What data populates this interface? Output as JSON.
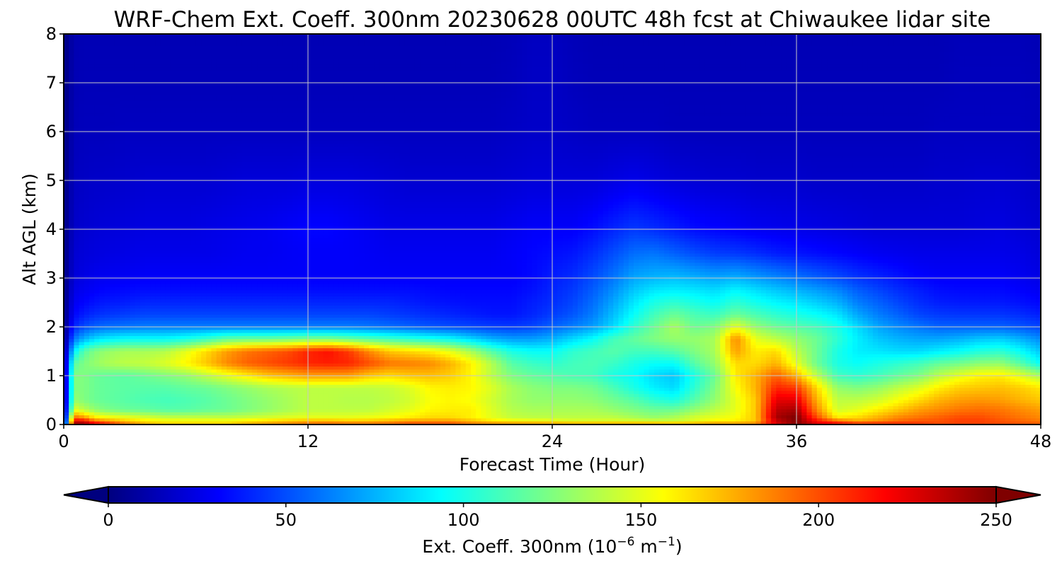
{
  "chart_data": {
    "type": "heatmap",
    "title": "WRF-Chem Ext. Coeff. 300nm  20230628 00UTC 48h fcst at Chiwaukee lidar site",
    "xlabel": "Forecast Time (Hour)",
    "ylabel": "Alt AGL (km)",
    "xlim": [
      0,
      48
    ],
    "ylim": [
      0,
      8
    ],
    "x_ticks": [
      "0",
      "12",
      "24",
      "36",
      "48"
    ],
    "y_ticks": [
      "0",
      "1",
      "2",
      "3",
      "4",
      "5",
      "6",
      "7",
      "8"
    ],
    "grid": true,
    "colormap": "jet",
    "colorbar": {
      "orientation": "horizontal",
      "placement": "bottom",
      "range": [
        0,
        250
      ],
      "extend": "both",
      "ticks": [
        "0",
        "50",
        "100",
        "150",
        "200",
        "250"
      ],
      "label_main": "Ext. Coeff. 300nm  (10",
      "label_exp1": "−6",
      "label_mid": " m",
      "label_exp2": "−1",
      "label_end": ")"
    },
    "x": [
      0,
      0.5,
      1,
      1.5,
      2,
      3,
      4,
      5,
      6,
      7,
      8,
      9,
      10,
      11,
      12,
      13,
      14,
      15,
      16,
      17,
      18,
      19,
      20,
      21,
      22,
      23,
      24,
      25,
      26,
      27,
      28,
      29,
      30,
      31,
      32,
      33,
      34,
      35,
      36,
      37,
      38,
      39,
      40,
      41,
      42,
      43,
      44,
      45,
      46,
      47,
      48
    ],
    "y": [
      0,
      0.05,
      0.15,
      0.3,
      0.5,
      0.75,
      1.0,
      1.25,
      1.5,
      1.75,
      2.0,
      2.25,
      2.5,
      2.75,
      3.0,
      3.5,
      4.0,
      5.0,
      6.0,
      7.0,
      8.0
    ],
    "z": [
      [
        0,
        250,
        250,
        240,
        230,
        200,
        180,
        170,
        170,
        170,
        170,
        180,
        185,
        190,
        195,
        200,
        200,
        200,
        200,
        210,
        210,
        210,
        200,
        200,
        200,
        200,
        200,
        200,
        200,
        200,
        200,
        200,
        200,
        200,
        200,
        200,
        200,
        230,
        250,
        230,
        230,
        230,
        230,
        220,
        210,
        200,
        200,
        200,
        200,
        200,
        200
      ],
      [
        0,
        230,
        230,
        200,
        190,
        175,
        165,
        160,
        160,
        160,
        160,
        165,
        170,
        175,
        180,
        180,
        175,
        175,
        180,
        185,
        185,
        185,
        175,
        165,
        160,
        158,
        155,
        150,
        150,
        150,
        150,
        148,
        145,
        150,
        160,
        160,
        170,
        230,
        250,
        220,
        200,
        180,
        185,
        195,
        200,
        200,
        205,
        205,
        200,
        195,
        190
      ],
      [
        0,
        190,
        180,
        160,
        155,
        150,
        145,
        140,
        140,
        140,
        140,
        142,
        145,
        148,
        150,
        150,
        150,
        152,
        155,
        160,
        165,
        165,
        160,
        150,
        142,
        140,
        140,
        140,
        140,
        140,
        135,
        130,
        135,
        145,
        150,
        155,
        170,
        240,
        250,
        200,
        160,
        165,
        175,
        185,
        190,
        195,
        200,
        200,
        195,
        190,
        185
      ],
      [
        0,
        150,
        140,
        130,
        125,
        120,
        118,
        115,
        115,
        118,
        120,
        125,
        130,
        135,
        140,
        140,
        140,
        140,
        145,
        150,
        158,
        160,
        160,
        148,
        138,
        135,
        135,
        135,
        135,
        130,
        125,
        120,
        120,
        130,
        140,
        150,
        170,
        235,
        240,
        185,
        145,
        150,
        160,
        170,
        180,
        185,
        190,
        192,
        190,
        185,
        180
      ],
      [
        0,
        130,
        125,
        120,
        118,
        115,
        112,
        110,
        112,
        115,
        120,
        125,
        130,
        135,
        140,
        140,
        138,
        138,
        140,
        145,
        155,
        158,
        155,
        145,
        135,
        130,
        130,
        130,
        128,
        122,
        115,
        105,
        100,
        115,
        130,
        150,
        170,
        225,
        225,
        175,
        140,
        140,
        145,
        155,
        165,
        175,
        180,
        182,
        180,
        175,
        170
      ],
      [
        0,
        125,
        125,
        120,
        118,
        116,
        115,
        115,
        118,
        120,
        125,
        130,
        135,
        138,
        140,
        140,
        140,
        140,
        142,
        148,
        158,
        160,
        158,
        148,
        135,
        128,
        125,
        125,
        122,
        112,
        100,
        90,
        85,
        105,
        125,
        155,
        175,
        210,
        205,
        165,
        130,
        125,
        130,
        140,
        148,
        160,
        168,
        170,
        172,
        168,
        162
      ],
      [
        0,
        125,
        125,
        120,
        118,
        116,
        120,
        125,
        130,
        140,
        150,
        160,
        170,
        175,
        180,
        180,
        180,
        170,
        165,
        170,
        172,
        168,
        158,
        140,
        125,
        118,
        115,
        112,
        110,
        100,
        95,
        85,
        80,
        100,
        120,
        160,
        175,
        195,
        175,
        140,
        110,
        105,
        110,
        118,
        125,
        140,
        150,
        158,
        160,
        150,
        135
      ],
      [
        0,
        115,
        125,
        130,
        135,
        140,
        142,
        148,
        158,
        170,
        185,
        195,
        200,
        205,
        210,
        212,
        210,
        200,
        190,
        188,
        185,
        175,
        160,
        138,
        115,
        108,
        105,
        110,
        112,
        108,
        100,
        95,
        95,
        115,
        130,
        165,
        165,
        175,
        150,
        120,
        100,
        95,
        100,
        105,
        110,
        118,
        122,
        128,
        130,
        115,
        95
      ],
      [
        0,
        90,
        115,
        125,
        130,
        135,
        135,
        138,
        150,
        165,
        180,
        190,
        195,
        200,
        210,
        215,
        205,
        185,
        170,
        165,
        160,
        150,
        135,
        115,
        100,
        95,
        95,
        105,
        110,
        115,
        110,
        110,
        115,
        125,
        135,
        180,
        160,
        165,
        140,
        120,
        100,
        90,
        88,
        85,
        85,
        90,
        95,
        102,
        105,
        95,
        80
      ],
      [
        0,
        60,
        75,
        85,
        90,
        95,
        95,
        95,
        100,
        108,
        118,
        120,
        120,
        122,
        125,
        125,
        120,
        115,
        110,
        105,
        100,
        95,
        85,
        75,
        70,
        70,
        75,
        85,
        95,
        110,
        118,
        125,
        130,
        130,
        135,
        185,
        150,
        140,
        130,
        120,
        105,
        90,
        80,
        75,
        72,
        72,
        75,
        80,
        82,
        75,
        65
      ],
      [
        0,
        40,
        50,
        55,
        58,
        60,
        62,
        62,
        62,
        62,
        62,
        62,
        62,
        62,
        62,
        62,
        62,
        60,
        58,
        55,
        52,
        50,
        48,
        46,
        45,
        48,
        55,
        62,
        70,
        85,
        105,
        120,
        135,
        120,
        125,
        150,
        130,
        120,
        115,
        110,
        100,
        85,
        72,
        65,
        60,
        55,
        55,
        55,
        55,
        52,
        48
      ],
      [
        0,
        32,
        38,
        42,
        44,
        46,
        48,
        48,
        48,
        48,
        48,
        48,
        48,
        48,
        48,
        48,
        48,
        48,
        46,
        44,
        42,
        40,
        38,
        36,
        36,
        40,
        46,
        52,
        62,
        78,
        95,
        110,
        120,
        112,
        108,
        120,
        112,
        105,
        100,
        95,
        88,
        72,
        62,
        55,
        48,
        45,
        44,
        44,
        44,
        42,
        38
      ],
      [
        0,
        28,
        32,
        35,
        37,
        38,
        40,
        40,
        40,
        40,
        40,
        40,
        40,
        40,
        40,
        40,
        40,
        40,
        40,
        38,
        36,
        35,
        34,
        34,
        34,
        38,
        42,
        48,
        58,
        72,
        88,
        100,
        105,
        100,
        95,
        105,
        98,
        92,
        88,
        82,
        75,
        62,
        55,
        48,
        42,
        38,
        37,
        37,
        37,
        35,
        32
      ],
      [
        0,
        25,
        28,
        30,
        32,
        33,
        34,
        34,
        34,
        34,
        34,
        34,
        34,
        34,
        34,
        34,
        34,
        34,
        34,
        34,
        33,
        32,
        32,
        32,
        32,
        35,
        40,
        45,
        54,
        66,
        80,
        88,
        90,
        88,
        85,
        92,
        86,
        80,
        75,
        70,
        64,
        54,
        48,
        42,
        38,
        34,
        33,
        33,
        33,
        31,
        28
      ],
      [
        0,
        22,
        25,
        27,
        28,
        29,
        30,
        30,
        30,
        30,
        30,
        30,
        30,
        30,
        30,
        30,
        30,
        30,
        30,
        30,
        30,
        30,
        30,
        30,
        30,
        33,
        38,
        42,
        50,
        60,
        72,
        76,
        78,
        75,
        72,
        75,
        70,
        65,
        60,
        55,
        50,
        44,
        40,
        36,
        32,
        30,
        30,
        30,
        30,
        28,
        25
      ],
      [
        0,
        20,
        22,
        23,
        24,
        25,
        26,
        26,
        26,
        26,
        27,
        28,
        28,
        29,
        30,
        30,
        30,
        29,
        28,
        28,
        28,
        28,
        28,
        28,
        30,
        32,
        34,
        36,
        42,
        50,
        58,
        60,
        55,
        50,
        46,
        45,
        42,
        38,
        36,
        34,
        32,
        30,
        28,
        27,
        26,
        26,
        26,
        26,
        26,
        25,
        22
      ],
      [
        0,
        18,
        20,
        21,
        22,
        23,
        24,
        24,
        24,
        25,
        26,
        27,
        28,
        30,
        32,
        32,
        30,
        28,
        26,
        26,
        26,
        26,
        26,
        26,
        28,
        30,
        30,
        30,
        34,
        40,
        45,
        42,
        38,
        34,
        32,
        30,
        28,
        27,
        26,
        25,
        24,
        23,
        22,
        22,
        22,
        22,
        22,
        23,
        24,
        22,
        20
      ],
      [
        0,
        16,
        17,
        18,
        18,
        19,
        20,
        20,
        20,
        20,
        21,
        22,
        22,
        22,
        23,
        23,
        23,
        22,
        21,
        20,
        20,
        20,
        20,
        20,
        21,
        22,
        22,
        22,
        22,
        24,
        26,
        24,
        22,
        21,
        20,
        20,
        19,
        19,
        19,
        18,
        18,
        18,
        18,
        18,
        18,
        19,
        19,
        20,
        20,
        19,
        17
      ],
      [
        0,
        14,
        15,
        15,
        15,
        16,
        16,
        16,
        16,
        16,
        16,
        16,
        16,
        16,
        16,
        16,
        16,
        16,
        16,
        16,
        16,
        16,
        16,
        16,
        17,
        18,
        18,
        17,
        16,
        16,
        16,
        16,
        15,
        15,
        15,
        15,
        15,
        15,
        15,
        15,
        15,
        15,
        15,
        15,
        15,
        16,
        16,
        16,
        16,
        16,
        15
      ],
      [
        0,
        13,
        14,
        14,
        14,
        14,
        14,
        14,
        14,
        14,
        14,
        14,
        14,
        14,
        14,
        14,
        14,
        14,
        14,
        14,
        14,
        14,
        14,
        14,
        15,
        17,
        17,
        15,
        14,
        14,
        14,
        14,
        14,
        14,
        14,
        14,
        14,
        14,
        14,
        14,
        14,
        14,
        14,
        14,
        14,
        14,
        15,
        15,
        15,
        15,
        14
      ],
      [
        0,
        12,
        13,
        13,
        13,
        13,
        13,
        13,
        13,
        13,
        13,
        13,
        13,
        13,
        13,
        13,
        13,
        13,
        13,
        13,
        13,
        13,
        13,
        13,
        14,
        16,
        16,
        14,
        13,
        13,
        13,
        13,
        13,
        13,
        13,
        13,
        13,
        13,
        13,
        13,
        13,
        13,
        13,
        13,
        13,
        13,
        14,
        14,
        14,
        14,
        13
      ]
    ]
  }
}
